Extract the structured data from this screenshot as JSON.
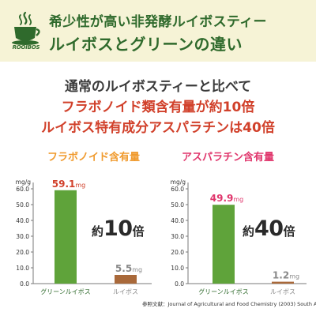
{
  "header": {
    "line1": "希少性が高い非発酵ルイボスティー",
    "line2": "ルイボスとグリーンの違い",
    "logo_text": "ROOIBOS"
  },
  "lead": {
    "line1": "通常のルイボスティーと比べて",
    "line2": "フラボノイド類含有量が約10倍",
    "line3": "ルイボス特有成分アスパラチンは40倍"
  },
  "colors": {
    "green_bar": "#5fa33a",
    "brown_bar": "#a9693a",
    "orange": "#f09a2d",
    "pink": "#e0366c",
    "dark_green": "#2f6a2c",
    "red": "#d1402a",
    "header_bg": "#f6f3d6"
  },
  "chart_data": [
    {
      "type": "bar",
      "title": "フラボノイド含有量",
      "ylabel": "mg/g",
      "ylim": [
        0,
        70
      ],
      "yticks": [
        "0.0",
        "10.0",
        "20.0",
        "30.0",
        "40.0",
        "50.0",
        "60.0"
      ],
      "categories": [
        "グリーンルイボス",
        "ルイボス"
      ],
      "values": [
        59.1,
        5.5
      ],
      "data_labels": [
        {
          "num": "59.1",
          "unit": "mg"
        },
        {
          "num": "5.5",
          "unit": "mg"
        }
      ],
      "ratio": {
        "pre": "約",
        "num": "10",
        "post": "倍"
      }
    },
    {
      "type": "bar",
      "title": "アスパラチン含有量",
      "ylabel": "mg/g",
      "ylim": [
        0,
        70
      ],
      "yticks": [
        "0.0",
        "10.0",
        "20.0",
        "30.0",
        "40.0",
        "50.0",
        "60.0"
      ],
      "categories": [
        "グリーンルイボス",
        "ルイボス"
      ],
      "values": [
        49.9,
        1.2
      ],
      "data_labels": [
        {
          "num": "49.9",
          "unit": "mg"
        },
        {
          "num": "1.2",
          "unit": "mg"
        }
      ],
      "ratio": {
        "pre": "約",
        "num": "40",
        "post": "倍"
      }
    }
  ],
  "footnote": "参照文献：Journal of Agricultural and Food Chemistry (2003) South Africa"
}
